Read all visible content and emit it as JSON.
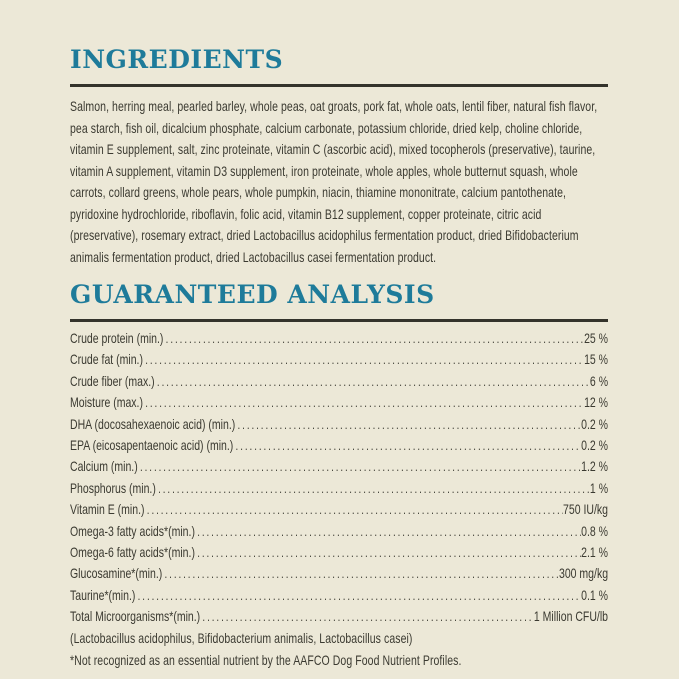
{
  "page": {
    "background_color": "#ece8d7",
    "accent_color": "#1e7b9a",
    "text_color": "#3b3a31",
    "rule_color": "#34332b"
  },
  "ingredients": {
    "title": "INGREDIENTS",
    "text": "Salmon, herring meal, pearled barley, whole peas, oat groats, pork fat, whole oats, lentil fiber, natural fish flavor, pea starch, fish oil, dicalcium phosphate, calcium carbonate, potassium chloride, dried kelp, choline chloride, vitamin E supplement, salt, zinc proteinate, vitamin C (ascorbic acid), mixed tocopherols (preservative), taurine, vitamin A supplement, vitamin D3 supplement, iron proteinate, whole apples, whole butternut squash, whole carrots, collard greens, whole pears, whole pumpkin, niacin, thiamine mononitrate, calcium pantothenate, pyridoxine hydrochloride, riboflavin, folic acid, vitamin B12 supplement, copper proteinate, citric acid (preservative), rosemary extract, dried Lactobacillus acidophilus fermentation product, dried Bifidobacterium animalis fermentation product, dried Lactobacillus casei fermentation product."
  },
  "analysis": {
    "title": "GUARANTEED ANALYSIS",
    "rows": [
      {
        "label": "Crude protein (min.)",
        "value": "25 %"
      },
      {
        "label": "Crude fat (min.)",
        "value": "15 %"
      },
      {
        "label": "Crude fiber (max.)",
        "value": "6 %"
      },
      {
        "label": "Moisture (max.)",
        "value": "12 %"
      },
      {
        "label": "DHA (docosahexaenoic acid) (min.)",
        "value": "0.2 %"
      },
      {
        "label": "EPA (eicosapentaenoic acid) (min.)",
        "value": "0.2 %"
      },
      {
        "label": "Calcium (min.)",
        "value": "1.2 %"
      },
      {
        "label": "Phosphorus (min.)",
        "value": "1 %"
      },
      {
        "label": "Vitamin E (min.)",
        "value": "750 IU/kg"
      },
      {
        "label": "Omega-3 fatty acids*(min.)",
        "value": "0.8 %"
      },
      {
        "label": "Omega-6 fatty acids*(min.)",
        "value": "2.1 %"
      },
      {
        "label": "Glucosamine*(min.)",
        "value": "300 mg/kg"
      },
      {
        "label": "Taurine*(min.)",
        "value": "0.1 %"
      },
      {
        "label": "Total Microorganisms*(min.)",
        "value": "1 Million CFU/lb"
      }
    ],
    "subnote": "(Lactobacillus acidophilus, Bifidobacterium animalis, Lactobacillus casei)",
    "footnote": "*Not recognized as an essential nutrient by the AAFCO Dog Food Nutrient Profiles."
  }
}
